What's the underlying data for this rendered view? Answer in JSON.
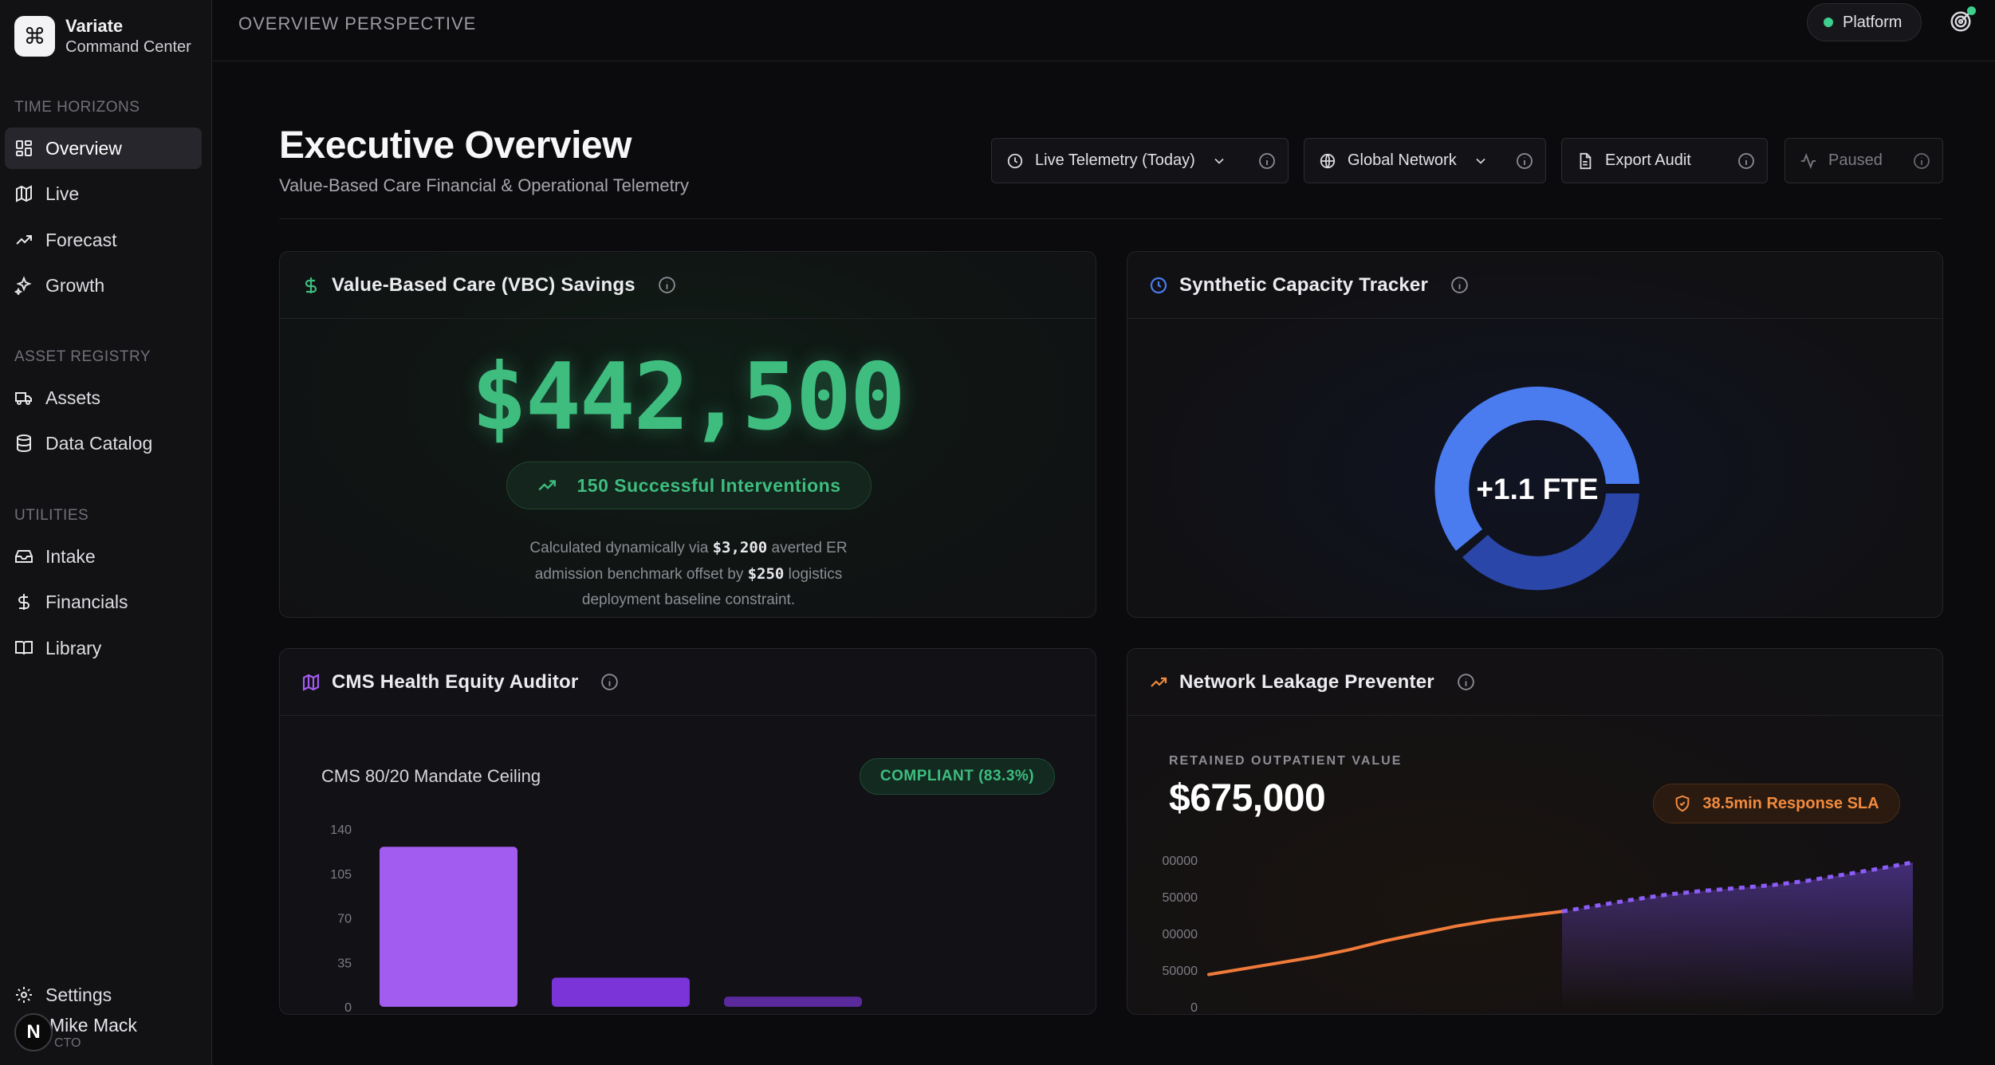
{
  "brand": {
    "logo_glyph": "⌘",
    "name": "Variate",
    "subtitle": "Command Center"
  },
  "sidebar": {
    "sections": [
      {
        "label": "TIME HORIZONS"
      },
      {
        "label": "ASSET REGISTRY"
      },
      {
        "label": "UTILITIES"
      }
    ],
    "items": [
      {
        "label": "Overview",
        "icon": "grid-icon",
        "active": true
      },
      {
        "label": "Live",
        "icon": "map-icon"
      },
      {
        "label": "Forecast",
        "icon": "trending-up-icon"
      },
      {
        "label": "Growth",
        "icon": "sparkles-icon"
      },
      {
        "label": "Assets",
        "icon": "truck-icon"
      },
      {
        "label": "Data Catalog",
        "icon": "database-icon"
      },
      {
        "label": "Intake",
        "icon": "inbox-icon"
      },
      {
        "label": "Financials",
        "icon": "dollar-icon"
      },
      {
        "label": "Library",
        "icon": "book-icon"
      }
    ],
    "settings_label": "Settings",
    "user": {
      "avatar_letter": "N",
      "initials": "M",
      "name": "Mike Mack",
      "role": "CTO"
    }
  },
  "topbar": {
    "perspective": "OVERVIEW PERSPECTIVE",
    "platform_label": "Platform",
    "status_color": "#3ecf8e"
  },
  "header": {
    "title": "Executive Overview",
    "subtitle": "Value-Based Care Financial & Operational Telemetry",
    "controls": {
      "time_range": "Live Telemetry (Today)",
      "network": "Global Network",
      "export": "Export Audit",
      "paused": "Paused"
    }
  },
  "vbc": {
    "title": "Value-Based Care (VBC) Savings",
    "amount": "$442,500",
    "interventions": "150 Successful Interventions",
    "note_1": "Calculated dynamically via ",
    "note_b1": "$3,200",
    "note_2": " averted ER admission benchmark offset by ",
    "note_b2": "$250",
    "note_3": " logistics deployment baseline constraint.",
    "accent": "#3ebd7f"
  },
  "capacity": {
    "title": "Synthetic Capacity Tracker",
    "value": "+1.1 FTE",
    "colors": [
      "#4a7cf0",
      "#2a46a8"
    ]
  },
  "cms": {
    "title": "CMS Health Equity Auditor",
    "subtitle": "CMS 80/20 Mandate Ceiling",
    "badge": "COMPLIANT (83.3%)"
  },
  "leakage": {
    "title": "Network Leakage Preventer",
    "label": "RETAINED OUTPATIENT VALUE",
    "amount": "$675,000",
    "badge": "38.5min Response SLA"
  },
  "chart_data": [
    {
      "type": "bar",
      "y_ticks": [
        "140",
        "105",
        "70",
        "35",
        "0"
      ],
      "ylim": [
        0,
        140
      ],
      "values": [
        126,
        23,
        8
      ],
      "colors": [
        "#a35cf0",
        "#7a34d8",
        "#5a2a9c"
      ]
    },
    {
      "type": "line",
      "y_ticks": [
        "00000",
        "50000",
        "00000",
        "50000",
        "0"
      ],
      "ylim": [
        0,
        200000
      ],
      "series": [
        {
          "style": "solid",
          "color": "#f07a3a",
          "values": [
            44000,
            52000,
            60000,
            68000,
            78000,
            90000,
            100000,
            110000,
            118000,
            124000,
            130000
          ]
        },
        {
          "style": "dashed",
          "color": "#8b5cf6",
          "values": [
            130000,
            138000,
            146000,
            153000,
            158000,
            162000,
            166000,
            172000,
            180000,
            188000,
            197000
          ]
        }
      ]
    }
  ]
}
